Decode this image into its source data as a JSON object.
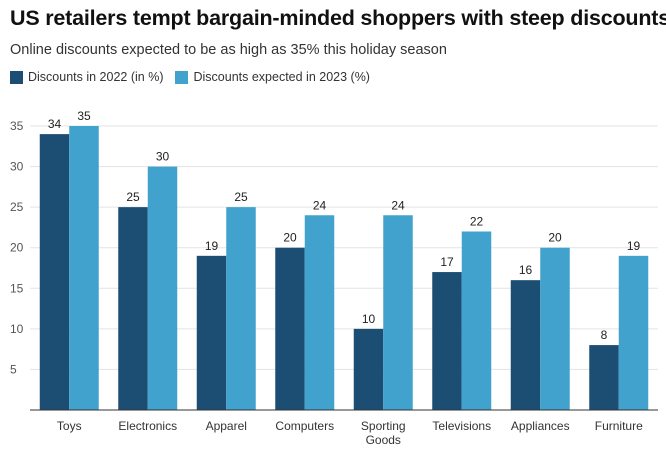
{
  "chart_data": {
    "type": "bar",
    "title": "US retailers tempt bargain-minded shoppers with steep discounts",
    "subtitle": "Online discounts expected to be as high as 35% this holiday season",
    "categories": [
      [
        "Toys"
      ],
      [
        "Electronics"
      ],
      [
        "Apparel"
      ],
      [
        "Computers"
      ],
      [
        "Sporting",
        "Goods"
      ],
      [
        "Televisions"
      ],
      [
        "Appliances"
      ],
      [
        "Furniture"
      ]
    ],
    "series": [
      {
        "name": "Discounts in 2022 (in %)",
        "color": "#1c4e74",
        "values": [
          34,
          25,
          19,
          20,
          10,
          17,
          16,
          8
        ]
      },
      {
        "name": "Discounts expected in 2023 (%)",
        "color": "#41a2cd",
        "values": [
          35,
          30,
          25,
          24,
          24,
          22,
          20,
          19
        ]
      }
    ],
    "ylim": [
      0,
      35
    ],
    "yticks": [
      5,
      10,
      15,
      20,
      25,
      30,
      35
    ],
    "xlabel": "",
    "ylabel": "",
    "grid": true,
    "legend_position": "top-left"
  }
}
